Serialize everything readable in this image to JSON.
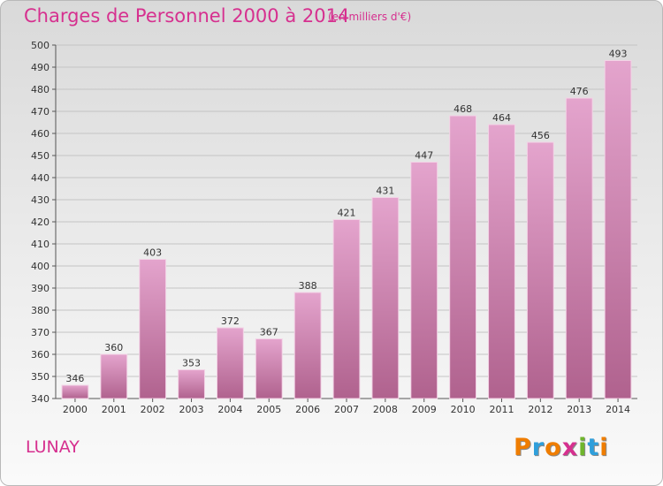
{
  "header": {
    "title": "Charges de Personnel 2000 à 2014",
    "subtitle": "(en milliers d'€)"
  },
  "footer": {
    "commune": "LUNAY",
    "logo_text": "Proxiti"
  },
  "colors": {
    "title": "#d6308f",
    "bar_top": "#e4a4cd",
    "bar_bottom": "#b0628e",
    "logo": [
      "#ef7d00",
      "#2f9fdb",
      "#ef7d00",
      "#d6308f",
      "#6fb52c",
      "#2f9fdb",
      "#ef7d00"
    ]
  },
  "chart_data": {
    "type": "bar",
    "title": "Charges de Personnel 2000 à 2014",
    "subtitle": "(en milliers d'€)",
    "categories": [
      "2000",
      "2001",
      "2002",
      "2003",
      "2004",
      "2005",
      "2006",
      "2007",
      "2008",
      "2009",
      "2010",
      "2011",
      "2012",
      "2013",
      "2014"
    ],
    "values": [
      346,
      360,
      403,
      353,
      372,
      367,
      388,
      421,
      431,
      447,
      468,
      464,
      456,
      476,
      493
    ],
    "ylim": [
      340,
      500
    ],
    "yticks": [
      340,
      350,
      360,
      370,
      380,
      390,
      400,
      410,
      420,
      430,
      440,
      450,
      460,
      470,
      480,
      490,
      500
    ],
    "grid": true,
    "legend": "none"
  }
}
